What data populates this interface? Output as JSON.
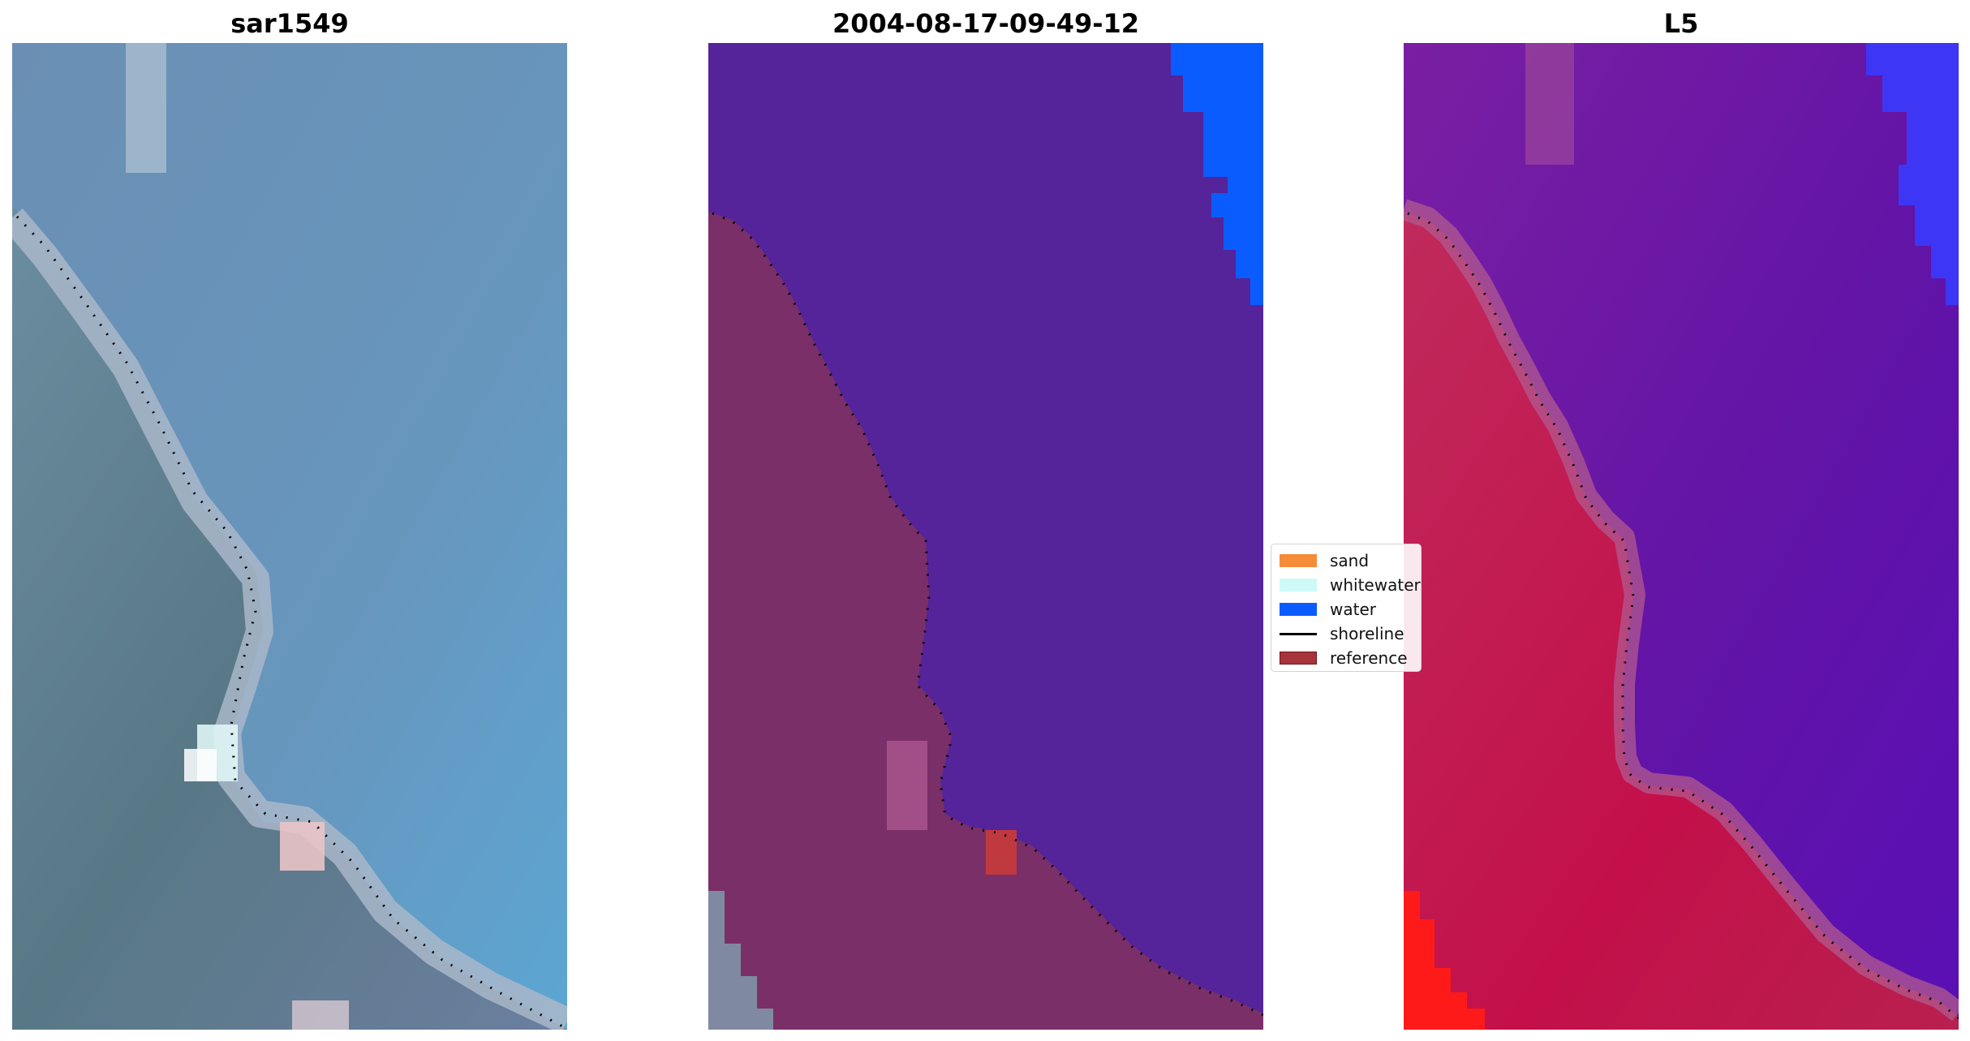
{
  "panels": [
    {
      "id": "rgb",
      "title": "sar1549"
    },
    {
      "id": "classified",
      "title": "2004-08-17-09-49-12"
    },
    {
      "id": "index",
      "title": "L5"
    }
  ],
  "legend": {
    "items": [
      {
        "label": "sand",
        "kind": "patch",
        "color": "#f58c3a"
      },
      {
        "label": "whitewater",
        "kind": "patch",
        "color": "#cdfaf7"
      },
      {
        "label": "water",
        "kind": "patch",
        "color": "#0a5cff"
      },
      {
        "label": "shoreline",
        "kind": "line",
        "color": "#000000"
      },
      {
        "label": "reference",
        "kind": "patch",
        "color": "#a8353b"
      }
    ]
  },
  "colors": {
    "rgb_land": "#5f7f93",
    "rgb_water": "#6695bb",
    "rgb_beach": "#a7b6c8",
    "class_land": "#7a2f68",
    "class_water": "#55239a",
    "class_water_blue": "#0a5cff",
    "class_reference": "#c0393f",
    "index_land": "#bf1a4c",
    "index_water": "#6c16a3",
    "index_blue": "#3d36f4",
    "index_red": "#ff1a1a",
    "shoreline": "#000000"
  }
}
